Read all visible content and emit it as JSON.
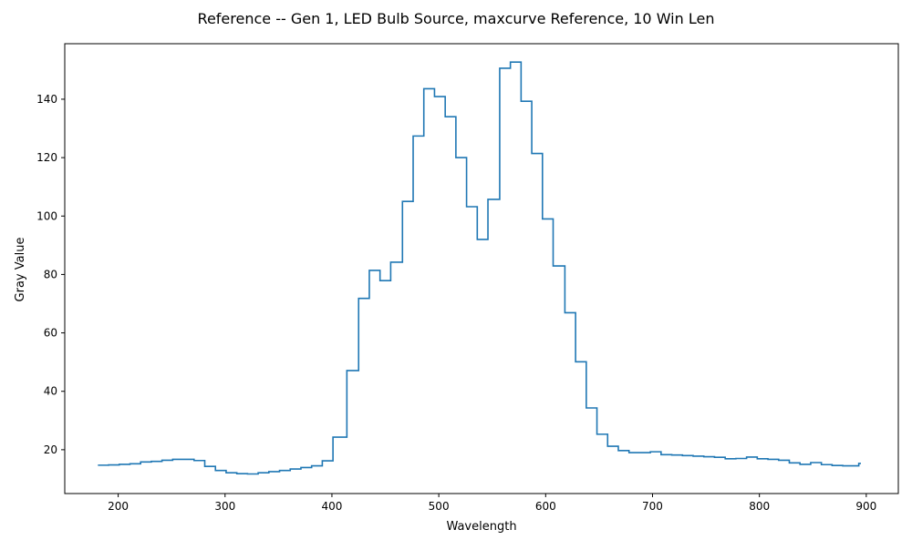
{
  "chart_data": {
    "type": "line",
    "title": "Reference -- Gen 1, LED Bulb Source, maxcurve Reference, 10 Win Len",
    "xlabel": "Wavelength",
    "ylabel": "Gray Value",
    "xlim": [
      150,
      930
    ],
    "ylim": [
      5,
      159
    ],
    "xticks": [
      200,
      300,
      400,
      500,
      600,
      700,
      800,
      900
    ],
    "yticks": [
      20,
      40,
      60,
      80,
      100,
      120,
      140
    ],
    "grid": false,
    "step": "post",
    "line_color": "#1f77b4",
    "series": [
      {
        "x": [
          181,
          191,
          201,
          211,
          221,
          231,
          241,
          251,
          261,
          271,
          281,
          291,
          301,
          311,
          321,
          331,
          341,
          351,
          361,
          371,
          381,
          391,
          401,
          414,
          425,
          435,
          445,
          455,
          466,
          476,
          486,
          496,
          506,
          516,
          526,
          536,
          546,
          557,
          567,
          577,
          587,
          597,
          607,
          618,
          628,
          638,
          648,
          658,
          668,
          678,
          688,
          698,
          708,
          718,
          728,
          738,
          748,
          758,
          768,
          778,
          788,
          798,
          808,
          818,
          828,
          838,
          848,
          858,
          868,
          878,
          888,
          893,
          895
        ],
        "y": [
          14.7,
          14.8,
          15.0,
          15.2,
          15.8,
          16.0,
          16.4,
          16.7,
          16.7,
          16.3,
          14.3,
          12.9,
          12.1,
          11.8,
          11.7,
          12.1,
          12.5,
          12.9,
          13.4,
          13.9,
          14.5,
          16.2,
          24.3,
          47.1,
          71.8,
          81.4,
          77.9,
          84.2,
          105.0,
          127.4,
          143.6,
          140.9,
          134.0,
          120.0,
          103.2,
          92.0,
          105.7,
          150.6,
          152.7,
          139.3,
          121.4,
          99.0,
          82.9,
          66.9,
          50.1,
          34.3,
          25.3,
          21.2,
          19.7,
          19.0,
          19.0,
          19.3,
          18.3,
          18.2,
          18.0,
          17.8,
          17.6,
          17.4,
          16.9,
          17.0,
          17.5,
          16.9,
          16.7,
          16.4,
          15.5,
          15.0,
          15.6,
          14.9,
          14.6,
          14.5,
          14.5,
          15.3,
          15.3
        ]
      }
    ]
  }
}
